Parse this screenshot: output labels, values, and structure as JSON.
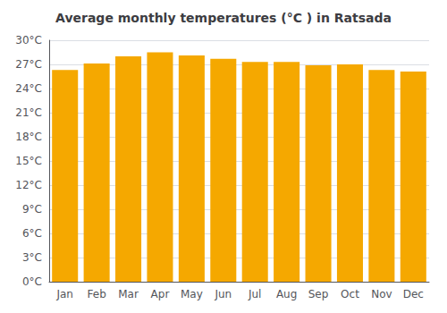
{
  "chart_data": {
    "type": "bar",
    "title": "Average monthly temperatures (°C ) in Ratsada",
    "categories": [
      "Jan",
      "Feb",
      "Mar",
      "Apr",
      "May",
      "Jun",
      "Jul",
      "Aug",
      "Sep",
      "Oct",
      "Nov",
      "Dec"
    ],
    "values": [
      26.3,
      27.1,
      28.0,
      28.5,
      28.1,
      27.7,
      27.3,
      27.3,
      26.9,
      27.0,
      26.3,
      26.1
    ],
    "color": "#F5A800",
    "ylim": [
      0,
      30
    ],
    "yticks": [
      {
        "value": 0,
        "label": "0°C"
      },
      {
        "value": 3,
        "label": "3°C"
      },
      {
        "value": 6,
        "label": "6°C"
      },
      {
        "value": 9,
        "label": "9°C"
      },
      {
        "value": 12,
        "label": "12°C"
      },
      {
        "value": 15,
        "label": "15°C"
      },
      {
        "value": 18,
        "label": "18°C"
      },
      {
        "value": 21,
        "label": "21°C"
      },
      {
        "value": 24,
        "label": "24°C"
      },
      {
        "value": 27,
        "label": "27°C"
      },
      {
        "value": 30,
        "label": "30°C"
      }
    ],
    "grid": true
  }
}
